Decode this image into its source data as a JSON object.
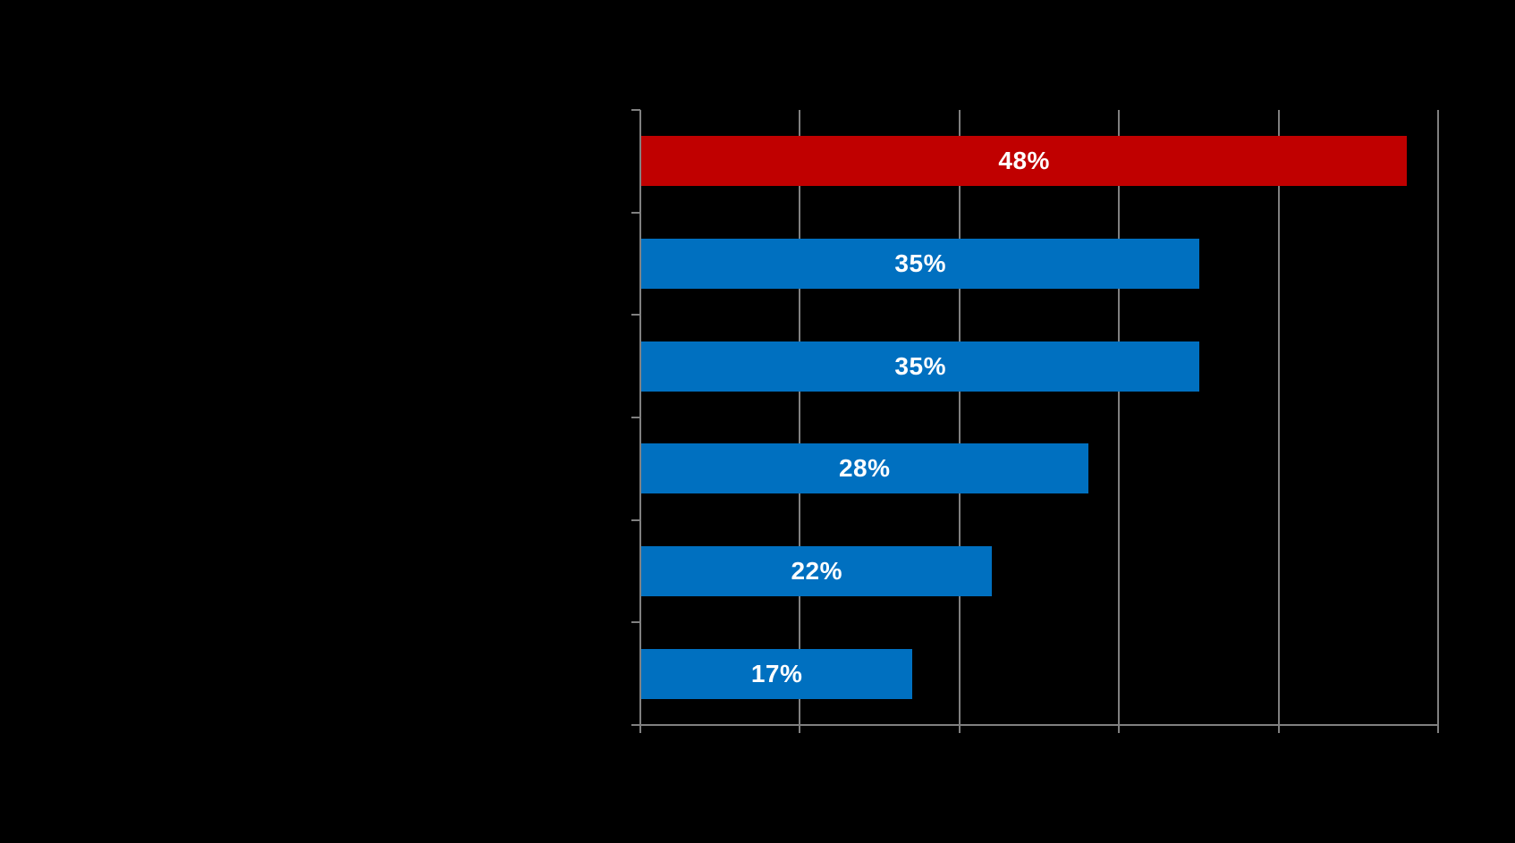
{
  "chart_data": {
    "type": "bar",
    "orientation": "horizontal",
    "title": "",
    "xlabel": "",
    "ylabel": "",
    "categories": [
      "",
      "",
      "",
      "",
      "",
      ""
    ],
    "values": [
      48,
      35,
      35,
      28,
      22,
      17
    ],
    "data_labels": [
      "48%",
      "35%",
      "35%",
      "28%",
      "22%",
      "17%"
    ],
    "bar_colors": [
      "#C00000",
      "#0070C0",
      "#0070C0",
      "#0070C0",
      "#0070C0",
      "#0070C0"
    ],
    "xlim": [
      0,
      50
    ],
    "gridline_interval": 10,
    "grid": true,
    "legend": "none",
    "data_label_position": "center",
    "colors": {
      "highlight_bar": "#C00000",
      "default_bar": "#0070C0",
      "axis": "#808080",
      "data_label_text": "#FFFFFF",
      "background": "#000000"
    }
  }
}
